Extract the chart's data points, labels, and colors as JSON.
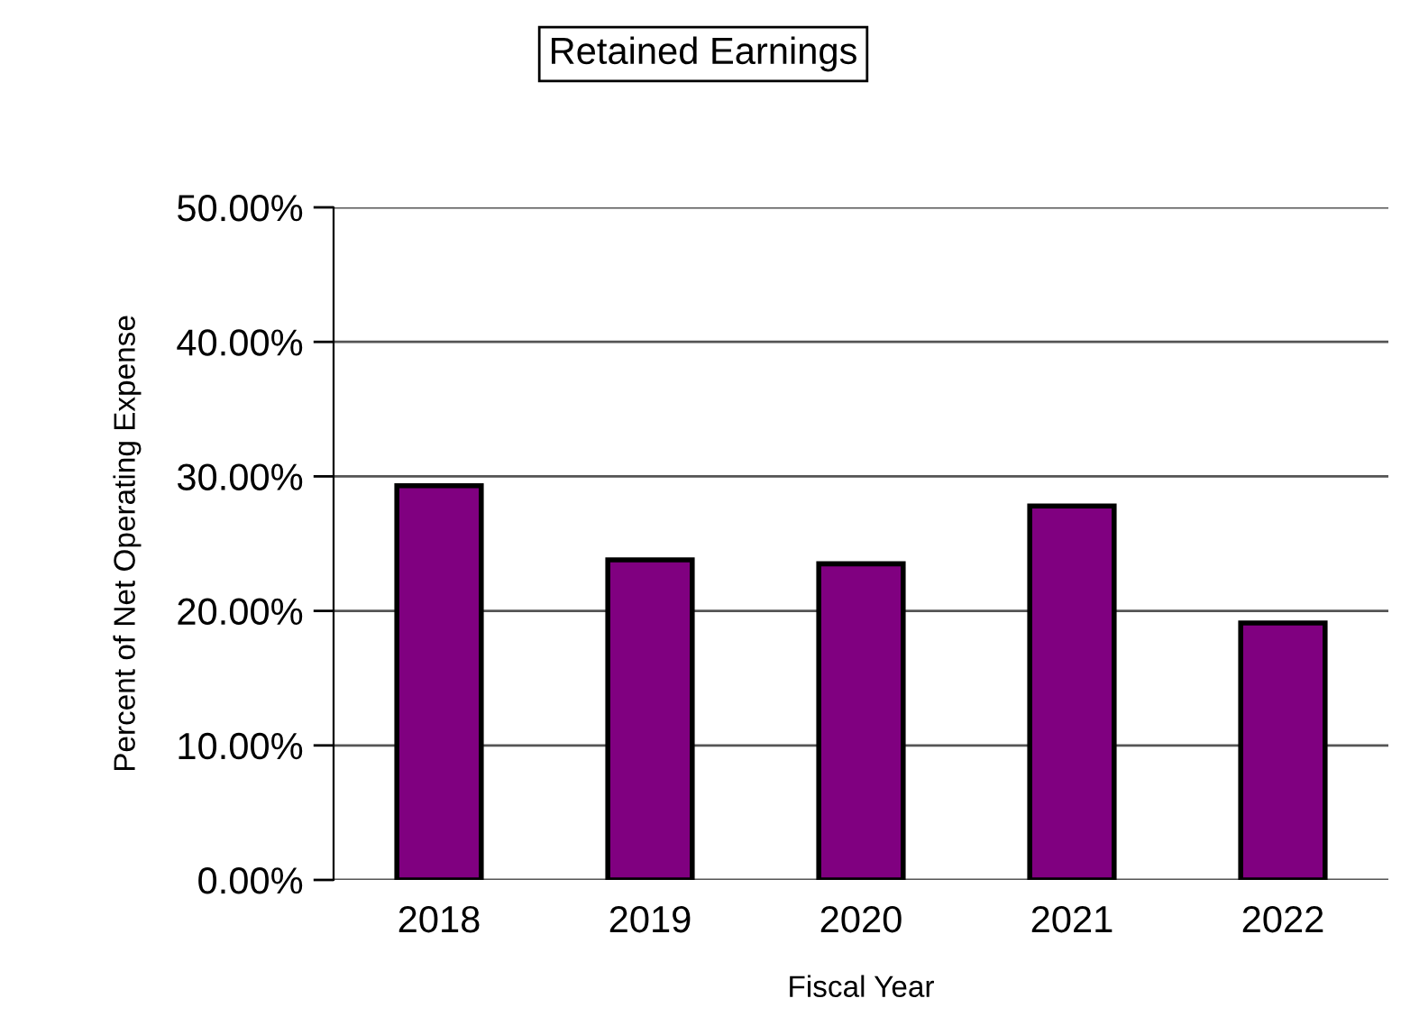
{
  "chart_data": {
    "type": "bar",
    "title": "Retained Earnings",
    "xlabel": "Fiscal Year",
    "ylabel": "Percent of Net Operating Expense",
    "categories": [
      "2018",
      "2019",
      "2020",
      "2021",
      "2022"
    ],
    "values": [
      29.3,
      23.8,
      23.5,
      27.8,
      19.1
    ],
    "color": "#800080",
    "ylim": [
      0,
      50
    ],
    "yticks": [
      {
        "value": 0,
        "label": "0.00%"
      },
      {
        "value": 10,
        "label": "10.00%"
      },
      {
        "value": 20,
        "label": "20.00%"
      },
      {
        "value": 30,
        "label": "30.00%"
      },
      {
        "value": 40,
        "label": "40.00%"
      },
      {
        "value": 50,
        "label": "50.00%"
      }
    ],
    "grid": "y"
  }
}
